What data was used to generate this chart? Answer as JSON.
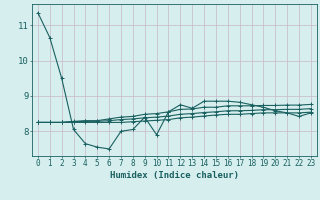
{
  "title": "",
  "xlabel": "Humidex (Indice chaleur)",
  "ylabel": "",
  "bg_color": "#d6eeee",
  "grid_color": "#c8b8c8",
  "line_color": "#1a6060",
  "x_values": [
    0,
    1,
    2,
    3,
    4,
    5,
    6,
    7,
    8,
    9,
    10,
    11,
    12,
    13,
    14,
    15,
    16,
    17,
    18,
    19,
    20,
    21,
    22,
    23
  ],
  "series": {
    "main": [
      11.35,
      10.65,
      9.5,
      8.05,
      7.65,
      7.55,
      7.5,
      8.0,
      8.05,
      8.4,
      7.9,
      8.55,
      8.75,
      8.65,
      8.85,
      8.85,
      8.85,
      8.82,
      8.75,
      8.68,
      8.58,
      8.52,
      8.42,
      8.52
    ],
    "upper": [
      8.25,
      8.25,
      8.25,
      8.28,
      8.3,
      8.3,
      8.35,
      8.4,
      8.42,
      8.48,
      8.5,
      8.55,
      8.62,
      8.63,
      8.68,
      8.68,
      8.72,
      8.72,
      8.72,
      8.73,
      8.73,
      8.74,
      8.74,
      8.76
    ],
    "lower": [
      8.25,
      8.25,
      8.25,
      8.25,
      8.25,
      8.25,
      8.25,
      8.25,
      8.27,
      8.29,
      8.31,
      8.33,
      8.38,
      8.4,
      8.43,
      8.46,
      8.48,
      8.48,
      8.5,
      8.52,
      8.52,
      8.52,
      8.52,
      8.54
    ],
    "mid": [
      8.25,
      8.25,
      8.25,
      8.27,
      8.28,
      8.28,
      8.3,
      8.33,
      8.35,
      8.38,
      8.4,
      8.43,
      8.48,
      8.5,
      8.53,
      8.55,
      8.58,
      8.58,
      8.59,
      8.61,
      8.61,
      8.62,
      8.62,
      8.64
    ]
  },
  "ylim": [
    7.3,
    11.6
  ],
  "yticks": [
    8,
    9,
    10,
    11
  ],
  "xlim": [
    -0.5,
    23.5
  ],
  "font_color": "#1a6060",
  "marker_size": 2.5,
  "line_width": 0.8,
  "xlabel_fontsize": 6.5,
  "tick_fontsize": 5.5
}
